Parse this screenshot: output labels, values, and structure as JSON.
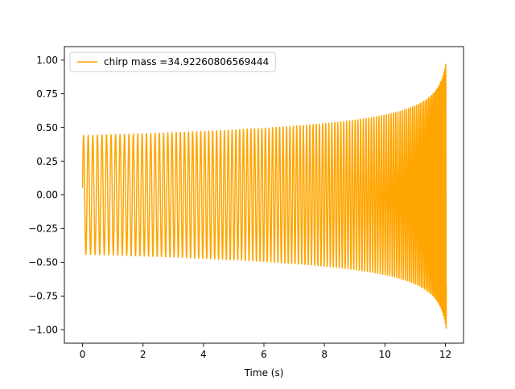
{
  "chart_data": {
    "type": "line",
    "title": "",
    "xlabel": "Time (s)",
    "ylabel": "",
    "xlim": [
      -0.6,
      12.6
    ],
    "ylim": [
      -1.1,
      1.1
    ],
    "grid": false,
    "legend_placement": "top-left",
    "x_ticks": [
      0,
      2,
      4,
      6,
      8,
      10,
      12
    ],
    "x_tick_labels": [
      "0",
      "2",
      "4",
      "6",
      "8",
      "10",
      "12"
    ],
    "y_ticks": [
      -1.0,
      -0.75,
      -0.5,
      -0.25,
      0.0,
      0.25,
      0.5,
      0.75,
      1.0
    ],
    "y_tick_labels": [
      "−1.00",
      "−0.75",
      "−0.50",
      "−0.25",
      "0.00",
      "0.25",
      "0.50",
      "0.75",
      "1.00"
    ],
    "series": [
      {
        "name": "chirp mass =34.92260806569444",
        "color": "#ffa500",
        "kind": "chirp",
        "t_start": 0.0,
        "t_end": 12.03,
        "t_coalescence": 12.13,
        "amplitude_start": 0.44,
        "amplitude_end": 1.0,
        "frequency_start_hz": 6.5,
        "frequency_end_hz": 26.0
      }
    ]
  }
}
